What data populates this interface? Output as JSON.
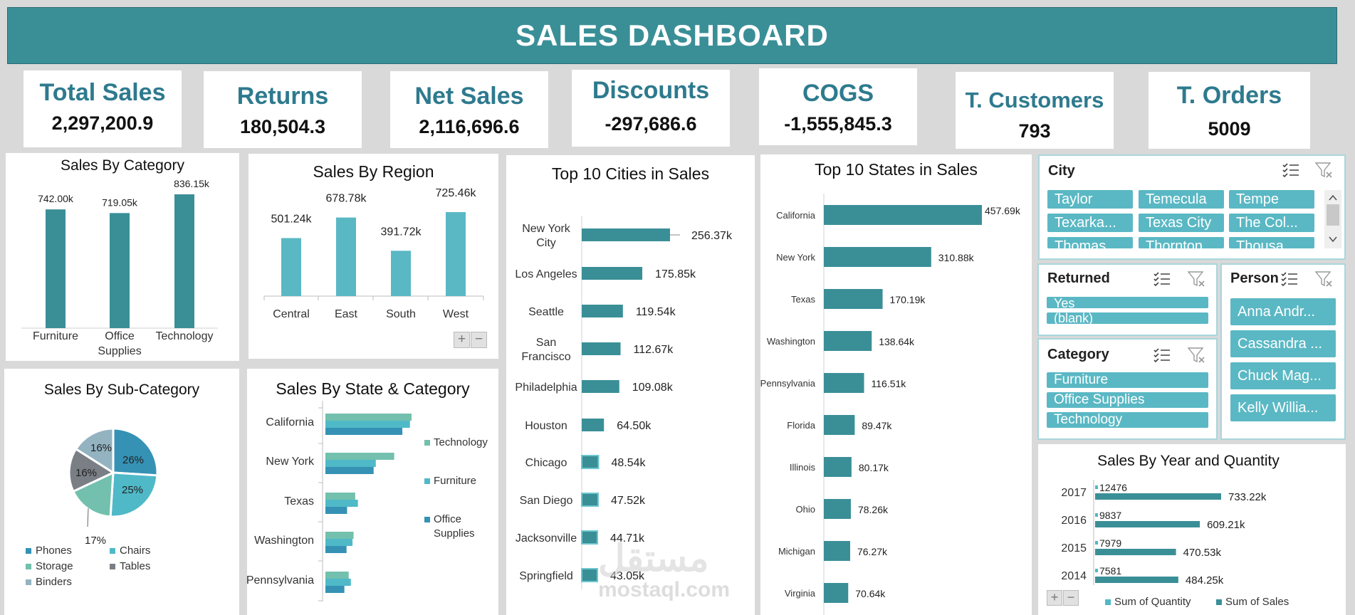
{
  "header": {
    "title": "SALES DASHBOARD"
  },
  "kpis": [
    {
      "label": "Total Sales",
      "value": "2,297,200.9"
    },
    {
      "label": "Returns",
      "value": "180,504.3"
    },
    {
      "label": "Net Sales",
      "value": "2,116,696.6"
    },
    {
      "label": "Discounts",
      "value": "-297,686.6"
    },
    {
      "label": "COGS",
      "value": "-1,555,845.3"
    },
    {
      "label": "T. Customers",
      "value": "793"
    },
    {
      "label": "T. Orders",
      "value": "5009"
    }
  ],
  "colors": {
    "header": "#3a8f97",
    "teal_dark": "#3a8f97",
    "teal_light": "#5ab8c4",
    "kpi_title": "#2e7a8e"
  },
  "chart_data": [
    {
      "id": "sales_by_category",
      "type": "bar",
      "title": "Sales By Category",
      "categories": [
        "Furniture",
        "Office Supplies",
        "Technology"
      ],
      "values": [
        742.0,
        719.05,
        836.15
      ],
      "labels": [
        "742.00k",
        "719.05k",
        "836.15k"
      ],
      "unit": "k"
    },
    {
      "id": "sales_by_region",
      "type": "bar",
      "title": "Sales By Region",
      "categories": [
        "Central",
        "East",
        "South",
        "West"
      ],
      "values": [
        501.24,
        678.78,
        391.72,
        725.46
      ],
      "labels": [
        "501.24k",
        "678.78k",
        "391.72k",
        "725.46k"
      ],
      "unit": "k"
    },
    {
      "id": "top10_cities",
      "type": "bar",
      "orientation": "horizontal",
      "title": "Top 10 Cities in Sales",
      "categories": [
        "New York City",
        "Los Angeles",
        "Seattle",
        "San Francisco",
        "Philadelphia",
        "Houston",
        "Chicago",
        "San Diego",
        "Jacksonville",
        "Springfield"
      ],
      "values": [
        256.37,
        175.85,
        119.54,
        112.67,
        109.08,
        64.5,
        48.54,
        47.52,
        44.71,
        43.05
      ],
      "labels": [
        "256.37k",
        "175.85k",
        "119.54k",
        "112.67k",
        "109.08k",
        "64.50k",
        "48.54k",
        "47.52k",
        "44.71k",
        "43.05k"
      ]
    },
    {
      "id": "top10_states",
      "type": "bar",
      "orientation": "horizontal",
      "title": "Top 10 States in Sales",
      "categories": [
        "California",
        "New York",
        "Texas",
        "Washington",
        "Pennsylvania",
        "Florida",
        "Illinois",
        "Ohio",
        "Michigan",
        "Virginia"
      ],
      "values": [
        457.69,
        310.88,
        170.19,
        138.64,
        116.51,
        89.47,
        80.17,
        78.26,
        76.27,
        70.64
      ],
      "labels": [
        "457.69k",
        "310.88k",
        "170.19k",
        "138.64k",
        "116.51k",
        "89.47k",
        "80.17k",
        "78.26k",
        "76.27k",
        "70.64k"
      ]
    },
    {
      "id": "sales_by_subcategory",
      "type": "pie",
      "title": "Sales By Sub-Category",
      "categories": [
        "Phones",
        "Chairs",
        "Storage",
        "Tables",
        "Binders"
      ],
      "values": [
        26,
        25,
        17,
        16,
        16
      ],
      "labels": [
        "26%",
        "25%",
        "17%",
        "16%",
        "16%"
      ],
      "colors": [
        "#3592b5",
        "#4fb9c8",
        "#72c0ad",
        "#7a7f86",
        "#93b3c1"
      ]
    },
    {
      "id": "sales_by_state_category",
      "type": "bar",
      "orientation": "horizontal",
      "title": "Sales By State & Category",
      "categories": [
        "California",
        "New York",
        "Texas",
        "Washington",
        "Pennsylvania"
      ],
      "series": [
        {
          "name": "Technology",
          "values": [
            159,
            127,
            55,
            52,
            43
          ],
          "color": "#72c0ad"
        },
        {
          "name": "Furniture",
          "values": [
            156,
            93,
            60,
            50,
            47
          ],
          "color": "#4fb9c8"
        },
        {
          "name": "Office Supplies",
          "values": [
            142,
            89,
            40,
            39,
            35
          ],
          "color": "#3592b5"
        }
      ]
    },
    {
      "id": "sales_by_year_quantity",
      "type": "bar",
      "orientation": "horizontal",
      "title": "Sales By Year and Quantity",
      "categories": [
        "2017",
        "2016",
        "2015",
        "2014"
      ],
      "series": [
        {
          "name": "Sum of Quantity",
          "values": [
            12476,
            9837,
            7979,
            7581
          ],
          "labels": [
            "12476",
            "9837",
            "7979",
            "7581"
          ],
          "color": "#4fb9c8"
        },
        {
          "name": "Sum of Sales",
          "values": [
            733.22,
            609.21,
            470.53,
            484.25
          ],
          "labels": [
            "733.22k",
            "609.21k",
            "470.53k",
            "484.25k"
          ],
          "color": "#3a8f97"
        }
      ]
    }
  ],
  "slicers": {
    "city": {
      "title": "City",
      "items": [
        "Taylor",
        "Temecula",
        "Tempe",
        "Texarka...",
        "Texas City",
        "The Col...",
        "Thomas...",
        "Thornton",
        "Thousa..."
      ]
    },
    "returned": {
      "title": "Returned",
      "items": [
        "Yes",
        "(blank)"
      ]
    },
    "person": {
      "title": "Person",
      "items": [
        "Anna Andr...",
        "Cassandra ...",
        "Chuck Mag...",
        "Kelly Willia..."
      ]
    },
    "category": {
      "title": "Category",
      "items": [
        "Furniture",
        "Office Supplies",
        "Technology"
      ]
    }
  },
  "icons": [
    "multiselect-icon",
    "clear-filter-icon",
    "scroll-up-icon",
    "scroll-down-icon",
    "expand-icon",
    "collapse-icon"
  ],
  "pivot_buttons": {
    "plus": "+",
    "minus": "−"
  },
  "watermark": {
    "text": "mostaql.com",
    "arabic": "مستقل"
  }
}
